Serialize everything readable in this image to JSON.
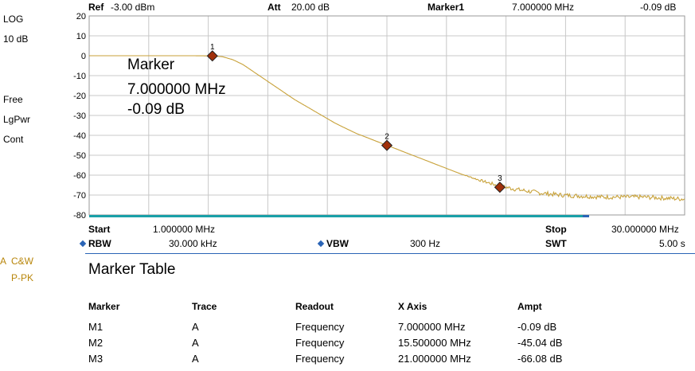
{
  "header": {
    "ref_label": "Ref",
    "ref_value": "-3.00 dBm",
    "att_label": "Att",
    "att_value": "20.00 dB",
    "marker_label": "Marker1",
    "marker_freq": "7.000000 MHz",
    "marker_ampl": "-0.09 dB"
  },
  "left_panel": {
    "scale_type": "LOG",
    "scale_div": "10 dB",
    "trig": "Free",
    "detector": "LgPwr",
    "mode": "Cont",
    "trace_a": "A",
    "trace_cw": "C&W",
    "trace_ppk": "P-PK"
  },
  "annotation": {
    "title": "Marker",
    "freq": "7.000000 MHz",
    "ampl": "-0.09 dB"
  },
  "footer": {
    "start_label": "Start",
    "start_value": "1.000000 MHz",
    "stop_label": "Stop",
    "stop_value": "30.000000 MHz",
    "rbw_label": "RBW",
    "rbw_value": "30.000 kHz",
    "vbw_label": "VBW",
    "vbw_value": "300 Hz",
    "swt_label": "SWT",
    "swt_value": "5.00 s"
  },
  "marker_table": {
    "title": "Marker Table",
    "columns": [
      "Marker",
      "Trace",
      "Readout",
      "X Axis",
      "Ampt"
    ],
    "rows": [
      [
        "M1",
        "A",
        "Frequency",
        "7.000000 MHz",
        "-0.09 dB"
      ],
      [
        "M2",
        "A",
        "Frequency",
        "15.500000 MHz",
        "-45.04 dB"
      ],
      [
        "M3",
        "A",
        "Frequency",
        "21.000000 MHz",
        "-66.08 dB"
      ]
    ]
  },
  "colors": {
    "trace": "#c8a23a",
    "marker_fill": "#a0300a",
    "grid": "#c8c8c8",
    "baseline": "#1aa0a8",
    "accent_blue": "#2a64b6"
  },
  "chart_data": {
    "type": "line",
    "title": "",
    "xlabel": "",
    "ylabel": "",
    "xlim": [
      1,
      30
    ],
    "ylim": [
      -80,
      20
    ],
    "yticks": [
      "20",
      "10",
      "0",
      "-10",
      "-20",
      "-30",
      "-40",
      "-50",
      "-60",
      "-70",
      "-80"
    ],
    "grid": true,
    "series": [
      {
        "x": [
          1,
          2,
          3,
          4,
          5,
          6,
          7,
          7.5,
          8,
          8.5,
          9,
          10,
          11,
          12,
          13,
          14,
          15,
          15.5,
          16,
          17,
          18,
          19,
          20,
          21,
          22,
          23,
          24,
          25,
          26,
          27,
          28,
          29,
          30
        ],
        "y": [
          0,
          0,
          0,
          0,
          0,
          0,
          -0.1,
          -0.5,
          -2,
          -4.5,
          -8,
          -15,
          -22,
          -28,
          -34,
          -39,
          -43,
          -45,
          -47,
          -51,
          -55,
          -59,
          -62.5,
          -65.5,
          -67.5,
          -69,
          -70,
          -70.5,
          -71,
          -71,
          -71,
          -71.5,
          -72
        ]
      }
    ],
    "markers": [
      {
        "label": "1",
        "x": 7.0,
        "y": -0.09
      },
      {
        "label": "2",
        "x": 15.5,
        "y": -45.04
      },
      {
        "label": "3",
        "x": 21.0,
        "y": -66.08
      }
    ]
  }
}
